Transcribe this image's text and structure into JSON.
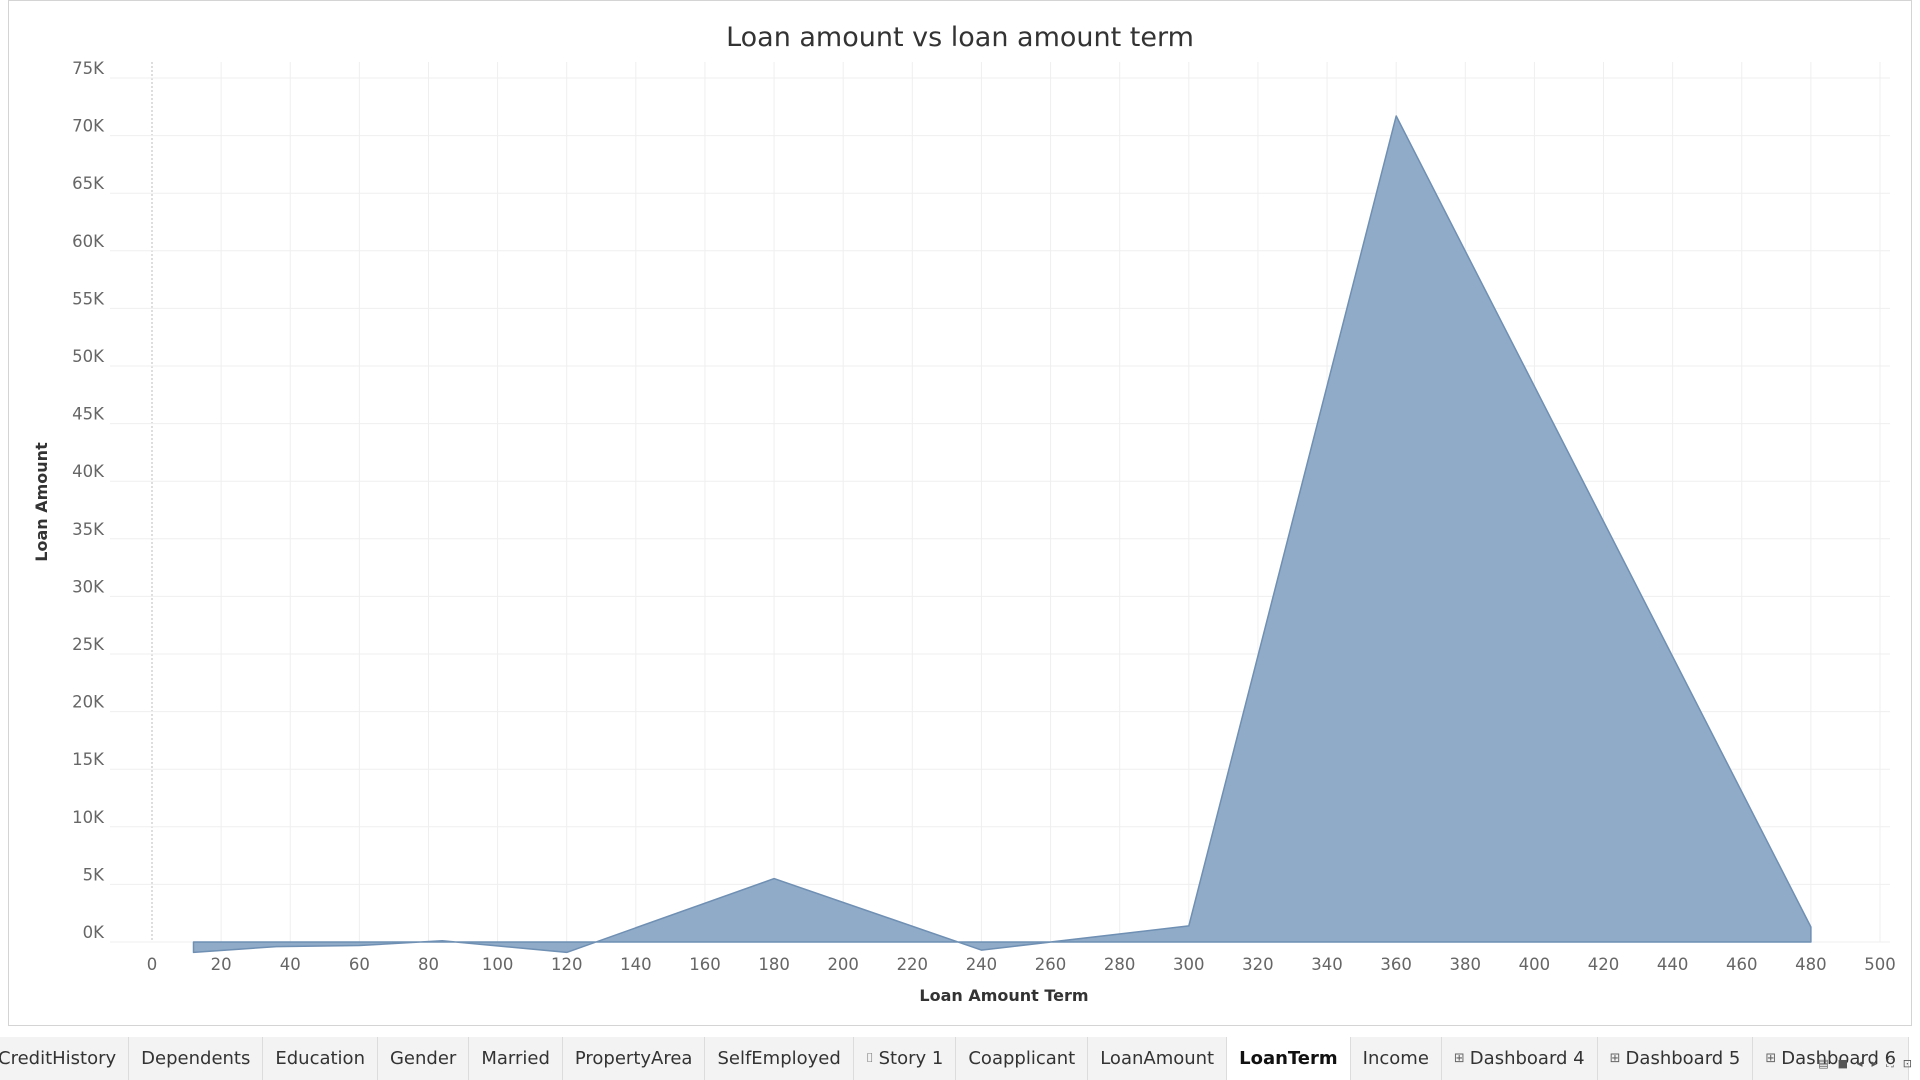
{
  "chart_data": {
    "type": "area",
    "title": "Loan amount vs loan amount term",
    "xlabel": "Loan Amount Term",
    "ylabel": "Loan Amount",
    "xlim": [
      0,
      500
    ],
    "ylim": [
      0,
      75000
    ],
    "x_ticks": [
      0,
      20,
      40,
      60,
      80,
      100,
      120,
      140,
      160,
      180,
      200,
      220,
      240,
      260,
      280,
      300,
      320,
      340,
      360,
      380,
      400,
      420,
      440,
      460,
      480,
      500
    ],
    "x_tick_labels": [
      "0",
      "20",
      "40",
      "60",
      "80",
      "100",
      "120",
      "140",
      "160",
      "180",
      "200",
      "220",
      "240",
      "260",
      "280",
      "300",
      "320",
      "340",
      "360",
      "380",
      "400",
      "420",
      "440",
      "460",
      "480",
      "500"
    ],
    "y_ticks": [
      0,
      5000,
      10000,
      15000,
      20000,
      25000,
      30000,
      35000,
      40000,
      45000,
      50000,
      55000,
      60000,
      65000,
      70000,
      75000
    ],
    "y_tick_labels": [
      "0K",
      "5K",
      "10K",
      "15K",
      "20K",
      "25K",
      "30K",
      "35K",
      "40K",
      "45K",
      "50K",
      "55K",
      "60K",
      "65K",
      "70K",
      "75K"
    ],
    "x": [
      12,
      36,
      60,
      84,
      120,
      180,
      240,
      300,
      360,
      480
    ],
    "series": [
      {
        "values": [
          -900,
          -400,
          -300,
          100,
          -900,
          5500,
          -700,
          1400,
          71700,
          1300
        ],
        "color": "#8fabc8",
        "stroke": "#6f8fb3"
      }
    ],
    "grid": true
  },
  "tabs": [
    {
      "label": "CreditHistory",
      "icon": "",
      "active": false
    },
    {
      "label": "Dependents",
      "icon": "",
      "active": false
    },
    {
      "label": "Education",
      "icon": "",
      "active": false
    },
    {
      "label": "Gender",
      "icon": "",
      "active": false
    },
    {
      "label": "Married",
      "icon": "",
      "active": false
    },
    {
      "label": "PropertyArea",
      "icon": "",
      "active": false
    },
    {
      "label": "SelfEmployed",
      "icon": "",
      "active": false
    },
    {
      "label": "Story 1",
      "icon": "story-icon",
      "active": false
    },
    {
      "label": "Coapplicant",
      "icon": "",
      "active": false
    },
    {
      "label": "LoanAmount",
      "icon": "",
      "active": false
    },
    {
      "label": "LoanTerm",
      "icon": "",
      "active": true
    },
    {
      "label": "Income",
      "icon": "",
      "active": false
    },
    {
      "label": "Dashboard 4",
      "icon": "dashboard-icon",
      "active": false
    },
    {
      "label": "Dashboard 5",
      "icon": "dashboard-icon",
      "active": false
    },
    {
      "label": "Dashboard 6",
      "icon": "dashboard-icon",
      "active": false
    }
  ],
  "controls": [
    {
      "name": "sheet-sorter-icon",
      "glyph": "▤"
    },
    {
      "name": "filmstrip-icon",
      "glyph": "■"
    },
    {
      "name": "scroll-left-icon",
      "glyph": "◂"
    },
    {
      "name": "scroll-right-icon",
      "glyph": "▸"
    },
    {
      "name": "fullscreen-icon",
      "glyph": "⛶"
    },
    {
      "name": "presentation-icon",
      "glyph": "⊡"
    }
  ]
}
